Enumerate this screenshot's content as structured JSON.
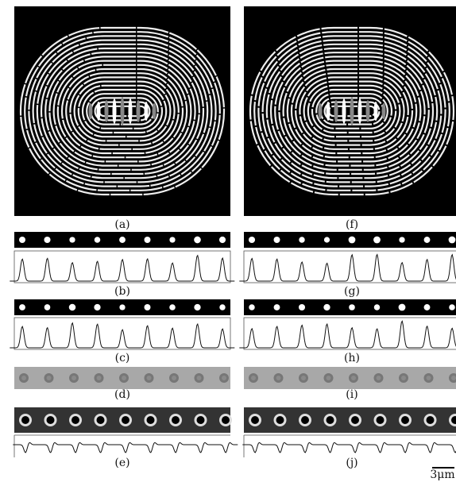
{
  "panels": [
    {
      "label": "(a)"
    },
    {
      "label": "(b)"
    },
    {
      "label": "(c)"
    },
    {
      "label": "(d)"
    },
    {
      "label": "(e)"
    },
    {
      "label": "(f)"
    },
    {
      "label": "(g)"
    },
    {
      "label": "(h)"
    },
    {
      "label": "(i)"
    },
    {
      "label": "(j)"
    }
  ],
  "scale_bar": "3μm"
}
